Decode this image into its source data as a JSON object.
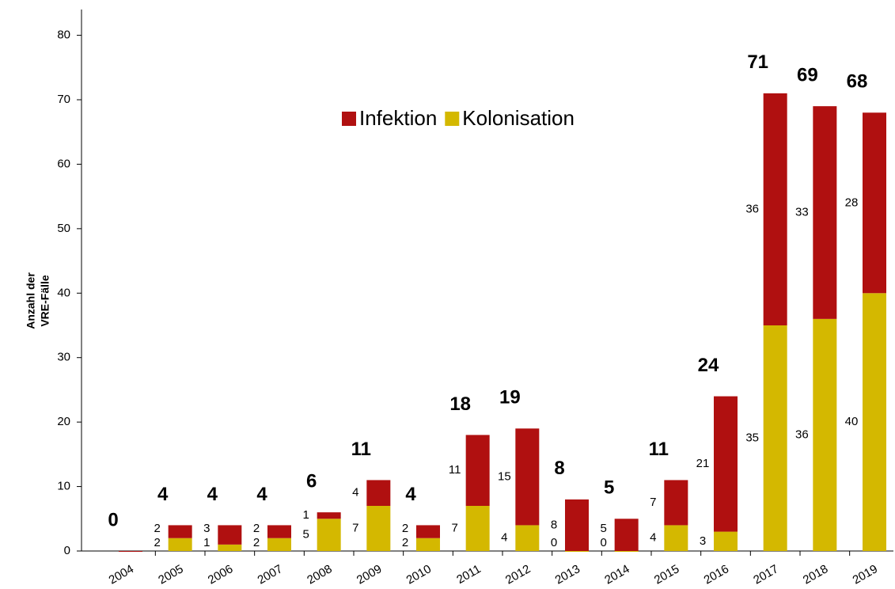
{
  "chart_data": {
    "type": "stacked-bar",
    "ylabel": [
      "Anzahl der",
      "VRE-Fälle"
    ],
    "categories": [
      "2004",
      "2005",
      "2006",
      "2007",
      "2008",
      "2009",
      "2010",
      "2011",
      "2012",
      "2013",
      "2014",
      "2015",
      "2016",
      "2017",
      "2018",
      "2019"
    ],
    "series": [
      {
        "name": "Kolonisation",
        "color": "#d4b800",
        "values": [
          0,
          2,
          1,
          2,
          5,
          7,
          2,
          7,
          4,
          0,
          0,
          4,
          3,
          35,
          36,
          40
        ],
        "value_labels": [
          null,
          "2",
          "1",
          "2",
          "5",
          "7",
          "2",
          "7",
          "4",
          "0",
          "0",
          "4",
          "3",
          "35",
          "36",
          "40"
        ]
      },
      {
        "name": "Infektion",
        "color": "#b01010",
        "values": [
          0,
          2,
          3,
          2,
          1,
          4,
          2,
          11,
          15,
          8,
          5,
          7,
          21,
          36,
          33,
          28
        ],
        "value_labels": [
          null,
          "2",
          "3",
          "2",
          "1",
          "4",
          "2",
          "11",
          "15",
          "8",
          "5",
          "7",
          "21",
          "36",
          "33",
          "28"
        ]
      }
    ],
    "totals": [
      0,
      4,
      4,
      4,
      6,
      11,
      4,
      18,
      19,
      8,
      5,
      11,
      24,
      71,
      69,
      68
    ],
    "ylim": [
      0,
      84
    ],
    "yticks": [
      0,
      10,
      20,
      30,
      40,
      50,
      60,
      70,
      80
    ]
  }
}
